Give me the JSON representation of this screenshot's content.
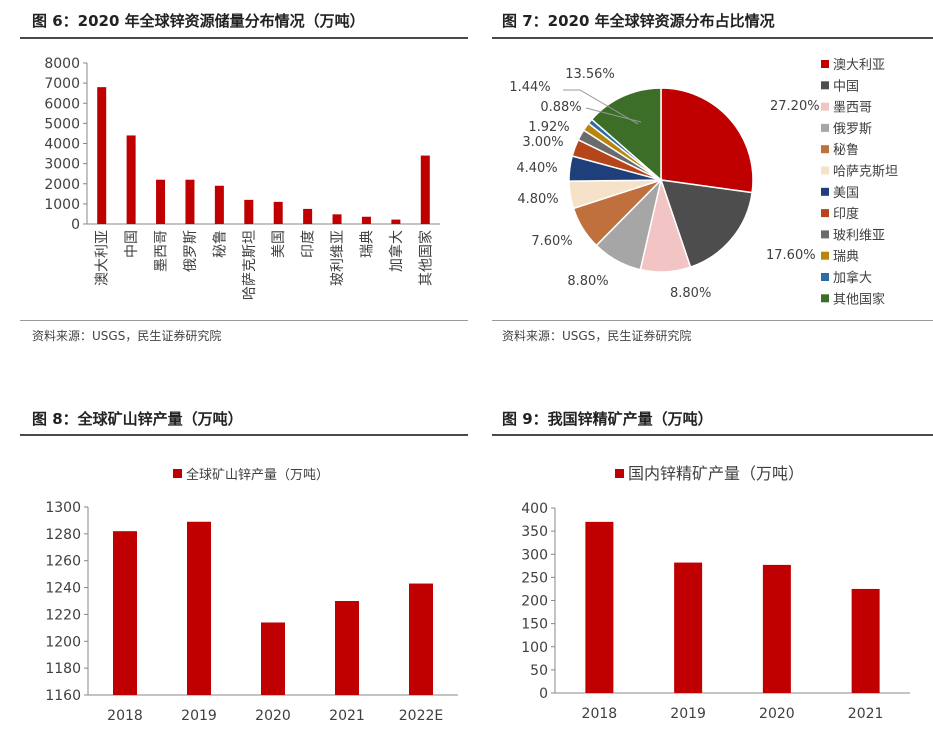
{
  "panels": {
    "fig6": {
      "title": "图 6：2020 年全球锌资源储量分布情况（万吨）",
      "source": "资料来源：USGS，民生证券研究院"
    },
    "fig7": {
      "title": "图 7：2020 年全球锌资源分布占比情况",
      "source": "资料来源：USGS，民生证券研究院"
    },
    "fig8": {
      "title": "图 8：全球矿山锌产量（万吨）"
    },
    "fig9": {
      "title": "图 9：我国锌精矿产量（万吨）"
    }
  },
  "colors": {
    "bar": "#c00000",
    "axis": "#888888",
    "text": "#404040"
  },
  "chart_data": [
    {
      "id": "fig6",
      "type": "bar",
      "categories": [
        "澳大利亚",
        "中国",
        "墨西哥",
        "俄罗斯",
        "秘鲁",
        "哈萨克斯坦",
        "美国",
        "印度",
        "玻利维亚",
        "瑞典",
        "加拿大",
        "其他国家"
      ],
      "values": [
        6800,
        4400,
        2200,
        2200,
        1900,
        1200,
        1100,
        750,
        480,
        360,
        220,
        3400
      ],
      "ylim": [
        0,
        8000
      ],
      "yticks": [
        0,
        1000,
        2000,
        3000,
        4000,
        5000,
        6000,
        7000,
        8000
      ],
      "legend": "none",
      "grid": false
    },
    {
      "id": "fig7",
      "type": "pie",
      "labels": [
        "澳大利亚",
        "中国",
        "墨西哥",
        "俄罗斯",
        "秘鲁",
        "哈萨克斯坦",
        "美国",
        "印度",
        "玻利维亚",
        "瑞典",
        "加拿大",
        "其他国家"
      ],
      "values": [
        27.2,
        17.6,
        8.8,
        8.8,
        7.6,
        4.8,
        4.4,
        3.0,
        1.92,
        1.44,
        0.88,
        13.56
      ],
      "value_labels": [
        "27.20%",
        "17.60%",
        "8.80%",
        "8.80%",
        "7.60%",
        "4.80%",
        "4.40%",
        "3.00%",
        "1.92%",
        "1.44%",
        "0.88%",
        "13.56%"
      ],
      "colors": [
        "#c00000",
        "#4d4d4d",
        "#f2c4c4",
        "#a6a6a6",
        "#c0703c",
        "#f5e2c8",
        "#1f3f7a",
        "#b5451b",
        "#6b6b6b",
        "#b8860b",
        "#2e6da4",
        "#3c6e28"
      ],
      "legend": "right"
    },
    {
      "id": "fig8",
      "type": "bar",
      "categories": [
        "2018",
        "2019",
        "2020",
        "2021",
        "2022E"
      ],
      "series": [
        {
          "name": "全球矿山锌产量（万吨）",
          "values": [
            1282,
            1289,
            1214,
            1230,
            1243
          ]
        }
      ],
      "ylim": [
        1160,
        1300
      ],
      "yticks": [
        1160,
        1180,
        1200,
        1220,
        1240,
        1260,
        1280,
        1300
      ],
      "legend": "top",
      "grid": false
    },
    {
      "id": "fig9",
      "type": "bar",
      "categories": [
        "2018",
        "2019",
        "2020",
        "2021"
      ],
      "series": [
        {
          "name": "国内锌精矿产量（万吨）",
          "values": [
            370,
            282,
            277,
            225
          ]
        }
      ],
      "ylim": [
        0,
        400
      ],
      "yticks": [
        0,
        50,
        100,
        150,
        200,
        250,
        300,
        350,
        400
      ],
      "legend": "top",
      "grid": false
    }
  ]
}
